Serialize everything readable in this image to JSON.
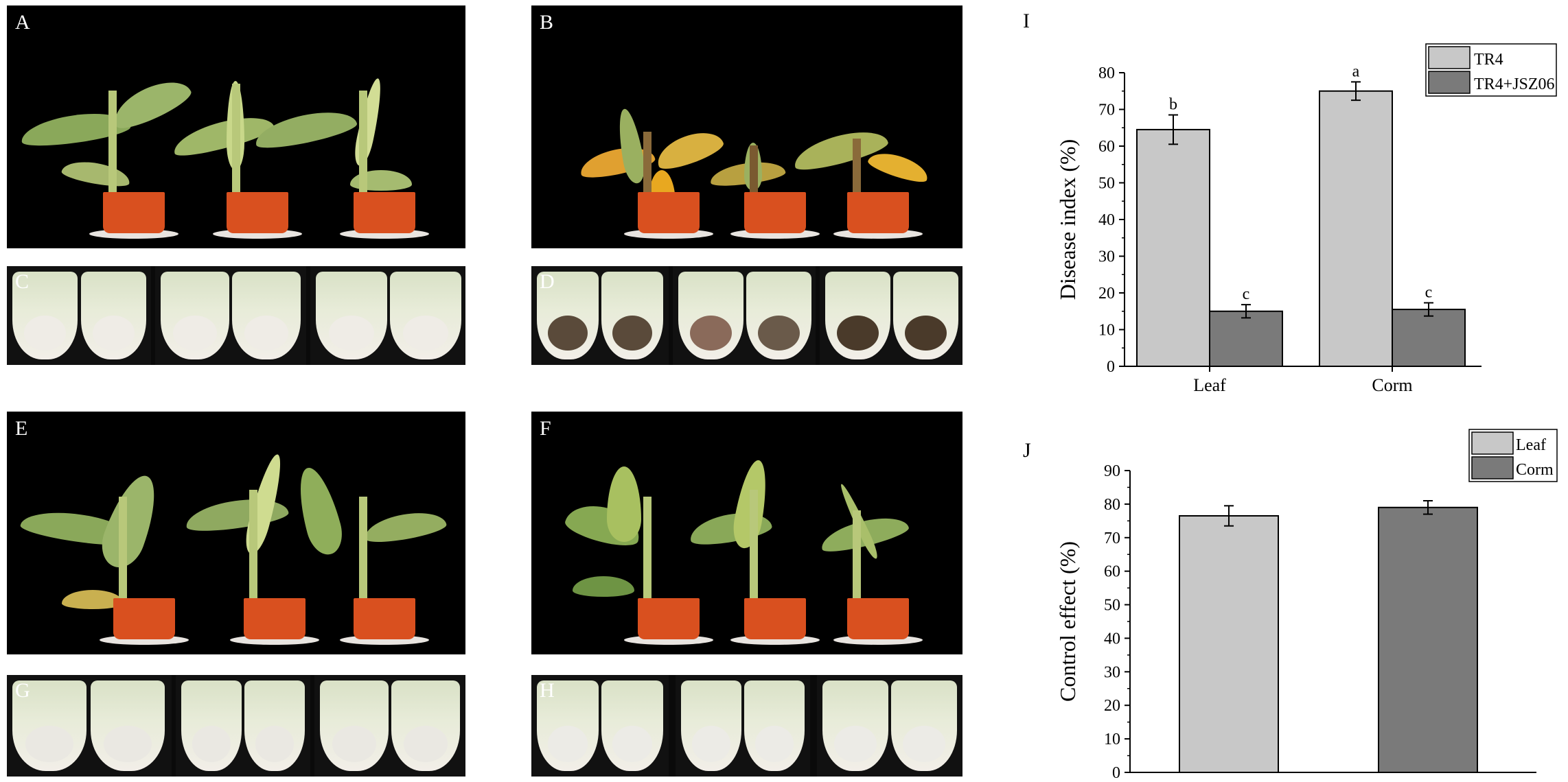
{
  "panels": {
    "A": "A",
    "B": "B",
    "C": "C",
    "D": "D",
    "E": "E",
    "F": "F",
    "G": "G",
    "H": "H",
    "I": "I",
    "J": "J"
  },
  "chart_data": [
    {
      "type": "bar",
      "panel": "I",
      "categories": [
        "Leaf",
        "Corm"
      ],
      "series": [
        {
          "name": "TR4",
          "values": [
            64.5,
            75.0
          ],
          "errors": [
            4.0,
            2.5
          ],
          "letters": [
            "b",
            "a"
          ],
          "color": "#c8c8c8"
        },
        {
          "name": "TR4+JSZ06",
          "values": [
            15.0,
            15.5
          ],
          "errors": [
            1.8,
            1.8
          ],
          "letters": [
            "c",
            "c"
          ],
          "color": "#7a7a7a"
        }
      ],
      "xlabel": "",
      "ylabel": "Disease index (%)",
      "ylim": [
        0,
        80
      ],
      "yticks": [
        "0",
        "10",
        "20",
        "30",
        "40",
        "50",
        "60",
        "70",
        "80"
      ],
      "legend": "top-right"
    },
    {
      "type": "bar",
      "panel": "J",
      "categories": [
        "Leaf",
        "Corm"
      ],
      "values": [
        76.5,
        79.0
      ],
      "errors": [
        3.0,
        2.0
      ],
      "colors": [
        "#c8c8c8",
        "#7a7a7a"
      ],
      "legend_entries": [
        "Leaf",
        "Corm"
      ],
      "xlabel": "",
      "ylabel": "Control effect (%)",
      "ylim": [
        0,
        90
      ],
      "yticks": [
        "0",
        "10",
        "20",
        "30",
        "40",
        "50",
        "60",
        "70",
        "80",
        "90"
      ],
      "legend": "top-right"
    }
  ]
}
